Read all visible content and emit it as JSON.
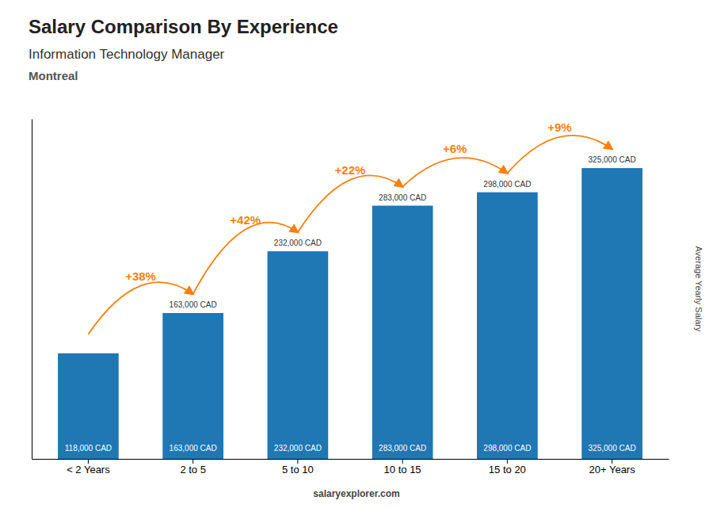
{
  "chart_data": {
    "type": "bar",
    "title": "Salary Comparison By Experience",
    "subtitle": [
      "Information Technology Manager",
      "Montreal"
    ],
    "ylabel": "Average Yearly Salary",
    "footer": "salaryexplorer.com",
    "categories": [
      "< 2 Years",
      "2 to 5",
      "5 to 10",
      "10 to 15",
      "15 to 20",
      "20+ Years"
    ],
    "values": [
      118000,
      163000,
      232000,
      283000,
      298000,
      325000
    ],
    "value_labels": [
      "118,000 CAD",
      "163,000 CAD",
      "232,000 CAD",
      "283,000 CAD",
      "298,000 CAD",
      "325,000 CAD"
    ],
    "data_labels": true,
    "annotations": [
      null,
      "+38%",
      "+42%",
      "+22%",
      "+6%",
      "+9%"
    ],
    "ylim": [
      0,
      380000
    ],
    "tick_labels": "x"
  }
}
